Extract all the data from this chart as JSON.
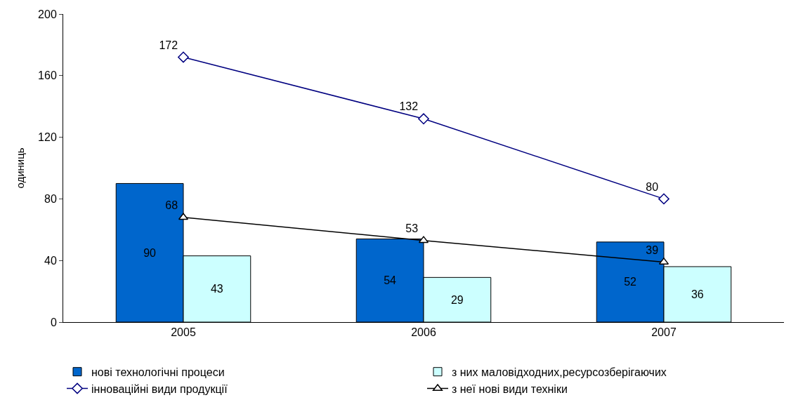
{
  "chart_data": {
    "type": "bar",
    "ylabel": "одиниць",
    "categories": [
      "2005",
      "2006",
      "2007"
    ],
    "series": [
      {
        "name": "нові технологічні процеси",
        "color": "#0066cc",
        "values": [
          90,
          54,
          52
        ]
      },
      {
        "name": "з них маловідходних,ресурсозберігаючих",
        "color": "#ccffff",
        "values": [
          43,
          29,
          36
        ]
      },
      {
        "name": "інноваційні види продукції",
        "type": "line",
        "color": "#000080",
        "marker": "diamond",
        "values": [
          172,
          132,
          80
        ]
      },
      {
        "name": "з неї нові види техніки",
        "type": "line",
        "color": "#000000",
        "marker": "triangle",
        "values": [
          68,
          53,
          39
        ]
      }
    ],
    "ylim": [
      0,
      200
    ],
    "yticks": [
      0,
      40,
      80,
      120,
      160,
      200
    ],
    "data_labels": true,
    "legend": "bottom"
  }
}
